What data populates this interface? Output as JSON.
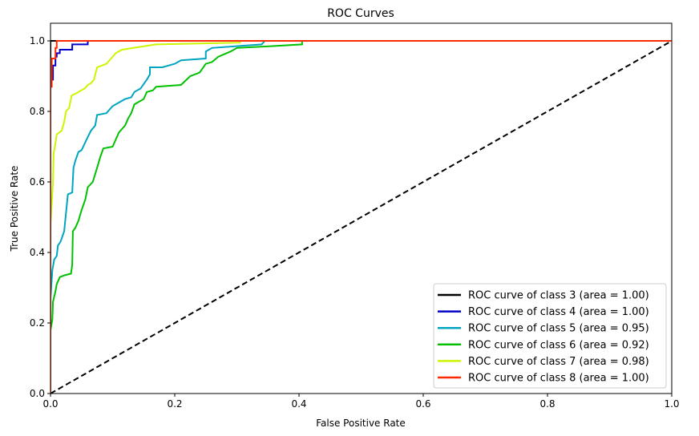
{
  "chart_data": {
    "type": "line",
    "title": "ROC Curves",
    "xlabel": "False Positive Rate",
    "ylabel": "True Positive Rate",
    "xlim": [
      0,
      1
    ],
    "ylim": [
      0,
      1.05
    ],
    "xticks": [
      0,
      0.2,
      0.4,
      0.6,
      0.8,
      1.0
    ],
    "xtick_labels": [
      "0.0",
      "0.2",
      "0.4",
      "0.6",
      "0.8",
      "1.0"
    ],
    "yticks": [
      0,
      0.2,
      0.4,
      0.6,
      0.8,
      1.0
    ],
    "ytick_labels": [
      "0.0",
      "0.2",
      "0.4",
      "0.6",
      "0.8",
      "1.0"
    ],
    "grid": false,
    "legend_placement": "lower-right",
    "series": [
      {
        "name": "ROC curve of class 3 (area = 1.00)",
        "color": "#000000",
        "points": [
          [
            0,
            0
          ],
          [
            0,
            1
          ],
          [
            1,
            1
          ]
        ]
      },
      {
        "name": "ROC curve of class 4 (area = 1.00)",
        "color": "#0000c8",
        "points": [
          [
            0,
            0
          ],
          [
            0,
            0.89
          ],
          [
            0.004,
            0.89
          ],
          [
            0.004,
            0.93
          ],
          [
            0.008,
            0.93
          ],
          [
            0.008,
            0.955
          ],
          [
            0.01,
            0.955
          ],
          [
            0.01,
            0.965
          ],
          [
            0.015,
            0.965
          ],
          [
            0.015,
            0.975
          ],
          [
            0.035,
            0.975
          ],
          [
            0.035,
            0.99
          ],
          [
            0.06,
            0.99
          ],
          [
            0.06,
            1.0
          ],
          [
            1,
            1
          ]
        ]
      },
      {
        "name": "ROC curve of class 5 (area = 0.95)",
        "color": "#00a5c0",
        "points": [
          [
            0,
            0
          ],
          [
            0,
            0.27
          ],
          [
            0.003,
            0.35
          ],
          [
            0.006,
            0.38
          ],
          [
            0.01,
            0.39
          ],
          [
            0.012,
            0.42
          ],
          [
            0.016,
            0.43
          ],
          [
            0.022,
            0.46
          ],
          [
            0.026,
            0.53
          ],
          [
            0.028,
            0.565
          ],
          [
            0.035,
            0.57
          ],
          [
            0.037,
            0.64
          ],
          [
            0.04,
            0.66
          ],
          [
            0.045,
            0.685
          ],
          [
            0.05,
            0.69
          ],
          [
            0.058,
            0.72
          ],
          [
            0.065,
            0.745
          ],
          [
            0.072,
            0.76
          ],
          [
            0.075,
            0.79
          ],
          [
            0.09,
            0.795
          ],
          [
            0.1,
            0.815
          ],
          [
            0.12,
            0.835
          ],
          [
            0.13,
            0.84
          ],
          [
            0.135,
            0.855
          ],
          [
            0.145,
            0.865
          ],
          [
            0.155,
            0.89
          ],
          [
            0.16,
            0.905
          ],
          [
            0.16,
            0.925
          ],
          [
            0.18,
            0.925
          ],
          [
            0.2,
            0.935
          ],
          [
            0.21,
            0.945
          ],
          [
            0.25,
            0.95
          ],
          [
            0.25,
            0.97
          ],
          [
            0.26,
            0.98
          ],
          [
            0.34,
            0.99
          ],
          [
            0.345,
            1.0
          ],
          [
            1,
            1
          ]
        ]
      },
      {
        "name": "ROC curve of class 6 (area = 0.92)",
        "color": "#00c000",
        "points": [
          [
            0,
            0
          ],
          [
            0,
            0.18
          ],
          [
            0.003,
            0.21
          ],
          [
            0.004,
            0.26
          ],
          [
            0.008,
            0.29
          ],
          [
            0.01,
            0.31
          ],
          [
            0.015,
            0.33
          ],
          [
            0.022,
            0.335
          ],
          [
            0.033,
            0.34
          ],
          [
            0.035,
            0.365
          ],
          [
            0.036,
            0.46
          ],
          [
            0.04,
            0.47
          ],
          [
            0.045,
            0.49
          ],
          [
            0.05,
            0.52
          ],
          [
            0.056,
            0.55
          ],
          [
            0.06,
            0.585
          ],
          [
            0.068,
            0.6
          ],
          [
            0.075,
            0.64
          ],
          [
            0.08,
            0.67
          ],
          [
            0.085,
            0.695
          ],
          [
            0.1,
            0.7
          ],
          [
            0.11,
            0.74
          ],
          [
            0.12,
            0.76
          ],
          [
            0.125,
            0.78
          ],
          [
            0.13,
            0.795
          ],
          [
            0.135,
            0.82
          ],
          [
            0.15,
            0.835
          ],
          [
            0.155,
            0.855
          ],
          [
            0.165,
            0.86
          ],
          [
            0.17,
            0.87
          ],
          [
            0.21,
            0.875
          ],
          [
            0.225,
            0.9
          ],
          [
            0.24,
            0.91
          ],
          [
            0.25,
            0.935
          ],
          [
            0.26,
            0.94
          ],
          [
            0.27,
            0.955
          ],
          [
            0.29,
            0.97
          ],
          [
            0.3,
            0.98
          ],
          [
            0.355,
            0.985
          ],
          [
            0.405,
            0.99
          ],
          [
            0.405,
            1.0
          ],
          [
            1,
            1
          ]
        ]
      },
      {
        "name": "ROC curve of class 7 (area = 0.98)",
        "color": "#ccf500",
        "points": [
          [
            0,
            0
          ],
          [
            0,
            0.48
          ],
          [
            0.004,
            0.6
          ],
          [
            0.005,
            0.68
          ],
          [
            0.008,
            0.71
          ],
          [
            0.01,
            0.735
          ],
          [
            0.018,
            0.745
          ],
          [
            0.022,
            0.77
          ],
          [
            0.025,
            0.8
          ],
          [
            0.03,
            0.81
          ],
          [
            0.034,
            0.845
          ],
          [
            0.04,
            0.85
          ],
          [
            0.055,
            0.865
          ],
          [
            0.06,
            0.875
          ],
          [
            0.065,
            0.88
          ],
          [
            0.07,
            0.89
          ],
          [
            0.075,
            0.925
          ],
          [
            0.09,
            0.935
          ],
          [
            0.105,
            0.965
          ],
          [
            0.115,
            0.975
          ],
          [
            0.17,
            0.99
          ],
          [
            0.305,
            0.995
          ],
          [
            0.305,
            1.0
          ],
          [
            1,
            1
          ]
        ]
      },
      {
        "name": "ROC curve of class 8 (area = 1.00)",
        "color": "#ff2a00",
        "points": [
          [
            0,
            0
          ],
          [
            0,
            0.87
          ],
          [
            0.002,
            0.87
          ],
          [
            0.002,
            0.95
          ],
          [
            0.008,
            0.95
          ],
          [
            0.008,
            0.98
          ],
          [
            0.01,
            0.98
          ],
          [
            0.01,
            1.0
          ],
          [
            1,
            1
          ]
        ]
      }
    ],
    "reference_line": {
      "points": [
        [
          0,
          0
        ],
        [
          1,
          1
        ]
      ],
      "color": "#000000",
      "style": "dashed"
    }
  }
}
